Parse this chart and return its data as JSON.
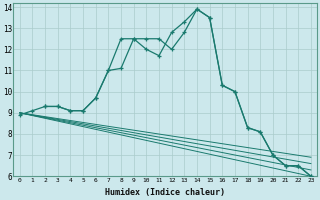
{
  "title": "",
  "xlabel": "Humidex (Indice chaleur)",
  "background_color": "#cce8ec",
  "grid_color": "#aacccc",
  "line_color": "#1a7a6e",
  "xlim": [
    -0.5,
    23.5
  ],
  "ylim": [
    6,
    14.2
  ],
  "xticks": [
    0,
    1,
    2,
    3,
    4,
    5,
    6,
    7,
    8,
    9,
    10,
    11,
    12,
    13,
    14,
    15,
    16,
    17,
    18,
    19,
    20,
    21,
    22,
    23
  ],
  "yticks": [
    6,
    7,
    8,
    9,
    10,
    11,
    12,
    13,
    14
  ],
  "line_up": {
    "x": [
      0,
      1,
      2,
      3,
      4,
      5,
      6,
      7,
      8,
      9,
      10,
      11,
      12,
      13,
      14,
      15,
      16,
      17,
      18,
      19,
      20,
      21,
      22,
      23
    ],
    "y": [
      8.9,
      9.1,
      9.3,
      9.3,
      9.1,
      9.1,
      9.7,
      11.0,
      12.5,
      12.5,
      12.0,
      11.7,
      12.8,
      13.3,
      13.9,
      13.5,
      10.3,
      10.0,
      8.3,
      8.1,
      7.0,
      6.5,
      6.5,
      6.0
    ]
  },
  "line_up2": {
    "x": [
      2,
      3,
      4,
      5,
      6,
      7,
      8,
      9,
      10,
      11,
      12,
      13,
      14,
      15,
      16,
      17,
      18,
      19,
      20,
      21,
      22,
      23
    ],
    "y": [
      9.3,
      9.3,
      9.1,
      9.1,
      9.7,
      11.0,
      11.1,
      12.5,
      12.5,
      12.5,
      12.0,
      12.8,
      13.9,
      13.5,
      10.3,
      10.0,
      8.3,
      8.1,
      7.0,
      6.5,
      6.5,
      6.0
    ]
  },
  "straight_lines": [
    {
      "x": [
        0,
        23
      ],
      "y": [
        9.0,
        6.0
      ]
    },
    {
      "x": [
        0,
        23
      ],
      "y": [
        9.0,
        6.3
      ]
    },
    {
      "x": [
        0,
        23
      ],
      "y": [
        9.0,
        6.6
      ]
    },
    {
      "x": [
        0,
        23
      ],
      "y": [
        9.0,
        6.9
      ]
    }
  ]
}
